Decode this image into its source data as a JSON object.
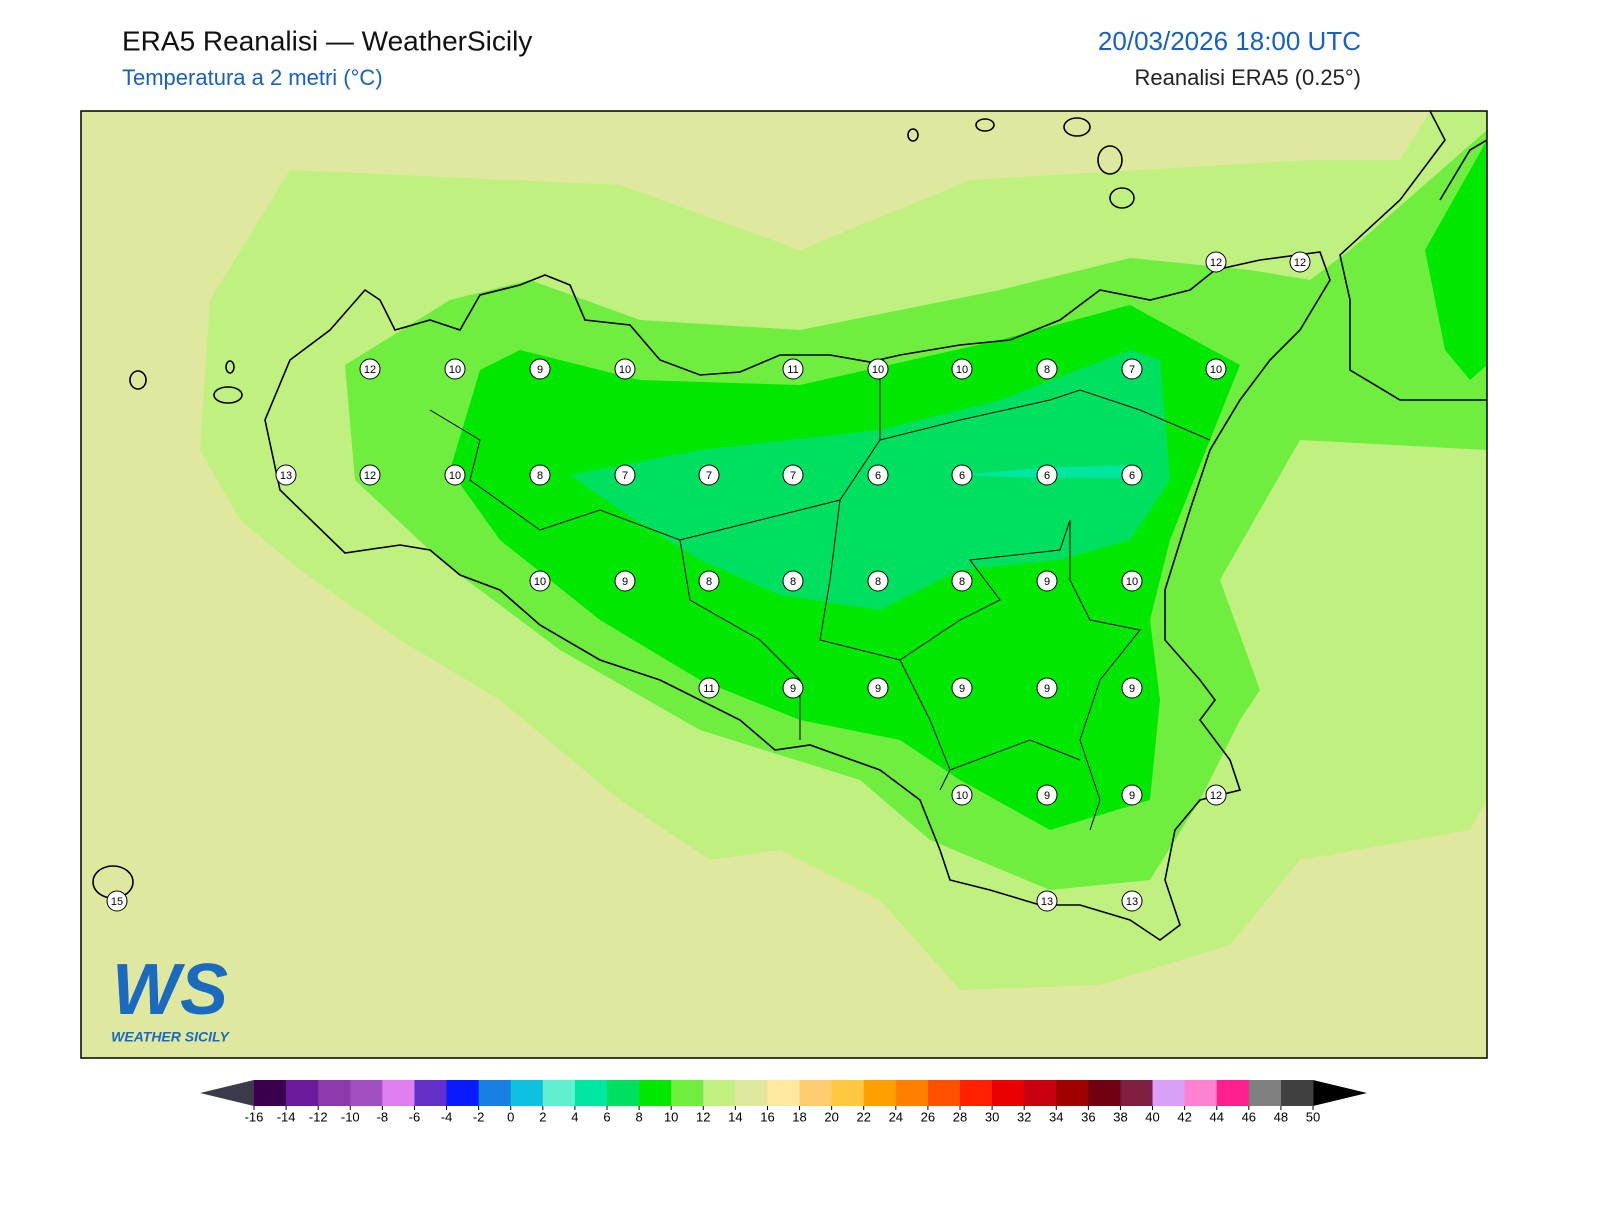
{
  "header": {
    "title": "ERA5 Reanalisi — WeatherSicily",
    "subtitle": "Temperatura a 2 metri (°C)",
    "datetime": "20/03/2026 18:00 UTC",
    "source": "Reanalisi ERA5 (0.25°)"
  },
  "map": {
    "station_values": [
      12,
      10,
      9,
      10,
      11,
      10,
      10,
      8,
      7,
      10,
      12,
      12,
      13,
      12,
      10,
      8,
      7,
      7,
      7,
      6,
      6,
      6,
      6,
      10,
      9,
      8,
      8,
      8,
      8,
      9,
      10,
      11,
      9,
      9,
      9,
      9,
      9,
      10,
      9,
      9,
      12,
      15,
      13,
      13
    ]
  },
  "colorbar": {
    "ticks": [
      -16,
      -14,
      -12,
      -10,
      -8,
      -6,
      -4,
      -2,
      0,
      2,
      4,
      6,
      8,
      10,
      12,
      14,
      16,
      18,
      20,
      22,
      24,
      26,
      28,
      30,
      32,
      34,
      36,
      38,
      40,
      42,
      44,
      46,
      48,
      50
    ],
    "colors": [
      "#3b004d",
      "#6a1a9a",
      "#8a3aaa",
      "#a050c0",
      "#e080f0",
      "#6030c8",
      "#0a1aff",
      "#1880e0",
      "#10c0e0",
      "#60f0d0",
      "#00e8a0",
      "#00e060",
      "#00e800",
      "#70ee40",
      "#c0f080",
      "#e0e8a0",
      "#ffe8a0",
      "#ffcc70",
      "#ffc840",
      "#ffa000",
      "#ff8000",
      "#ff5000",
      "#ff2000",
      "#e80000",
      "#c80010",
      "#a00000",
      "#700010",
      "#802040",
      "#d8a0f8",
      "#ff80d0",
      "#ff2090",
      "#808080",
      "#404040"
    ],
    "under_color": "#3a3a4a",
    "over_color": "#000000"
  },
  "logo": {
    "mark": "WS",
    "name": "WEATHER SICILY"
  }
}
